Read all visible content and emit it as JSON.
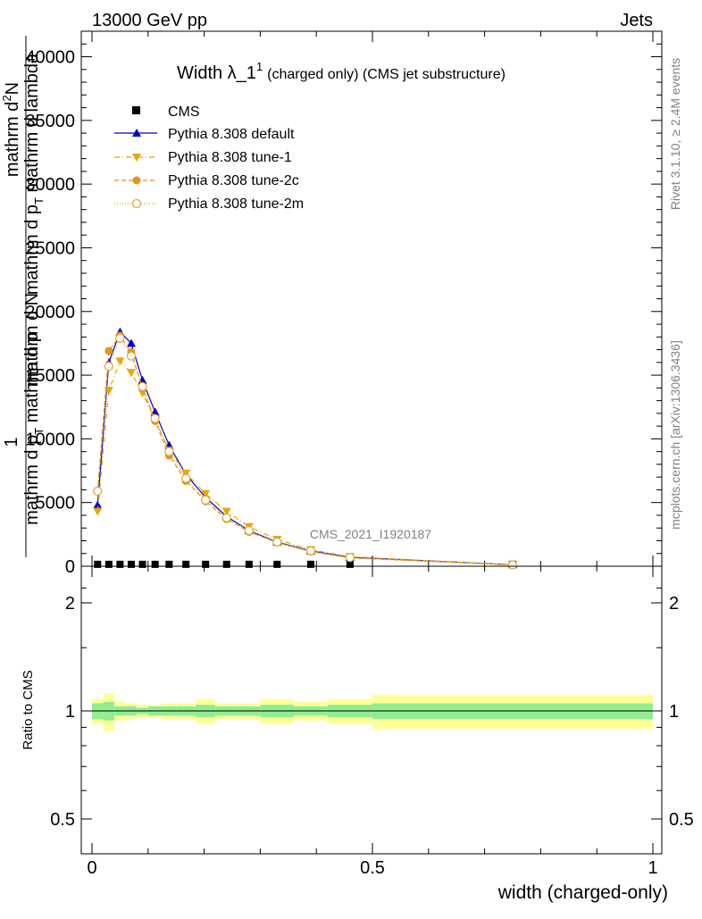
{
  "header": {
    "left": "13000 GeV pp",
    "right": "Jets"
  },
  "side_texts": {
    "rivet": "Rivet 3.1.10, ≥ 2.4M events",
    "mcplots": "mcplots.cern.ch [arXiv:1306.3436]"
  },
  "watermark": "CMS_2021_I1920187",
  "title": {
    "main": "Width λ_1",
    "sup": "1",
    "rest": "(charged only) (CMS jet substructure)"
  },
  "ylabel": {
    "one": "1",
    "num": "mathrm d N",
    "den": "mathrm d p",
    "den_sub": "T",
    "den_rest": " mathrm d p",
    "right_num": "mathrm d",
    "right_sup": "2",
    "right_num2": "N",
    "right_den": "mathrm d p",
    "right_den_sub": "T",
    "right_den_rest": " mathrm d lambda"
  },
  "xlabel": "width (charged-only)",
  "ratio_ylabel": "Ratio to CMS",
  "colors": {
    "default": "#0000cc",
    "tune1": "#e8a800",
    "tune2c": "#e39518",
    "tune2m": "#e3a330",
    "band_inner": "#90ee90",
    "band_outer": "#ffff99"
  },
  "chart_data": {
    "type": "line",
    "x_edges": [
      0,
      0.02,
      0.04,
      0.06,
      0.08,
      0.1,
      0.125,
      0.15,
      0.185,
      0.22,
      0.26,
      0.3,
      0.36,
      0.42,
      0.5,
      1.0
    ],
    "xlim": [
      -0.01,
      1.01
    ],
    "ylim": [
      0,
      42000
    ],
    "yticks": [
      0,
      5000,
      10000,
      15000,
      20000,
      25000,
      30000,
      35000,
      40000
    ],
    "ytick_labels": [
      "0",
      "5000",
      "10000",
      "15000",
      "20000",
      "25000",
      "30000",
      "35000",
      "40000"
    ],
    "xticks": [
      0,
      0.5,
      1
    ],
    "xtick_labels": [
      "0",
      "0.5",
      "1"
    ],
    "series": [
      {
        "name": "CMS",
        "key": "cms",
        "x": [
          0.01,
          0.03,
          0.05,
          0.07,
          0.09,
          0.1125,
          0.1375,
          0.1675,
          0.2025,
          0.24,
          0.28,
          0.33,
          0.39,
          0.46,
          0.75
        ],
        "values": [
          150,
          150,
          150,
          150,
          150,
          150,
          150,
          150,
          150,
          150,
          150,
          150,
          150,
          150,
          150
        ]
      },
      {
        "name": "Pythia 8.308 default",
        "key": "default",
        "x": [
          0.01,
          0.03,
          0.05,
          0.07,
          0.09,
          0.1125,
          0.1375,
          0.1675,
          0.2025,
          0.24,
          0.28,
          0.33,
          0.39,
          0.46,
          0.75
        ],
        "values": [
          4800,
          16000,
          18400,
          17500,
          14600,
          12100,
          9500,
          7200,
          5400,
          3900,
          2800,
          1900,
          1200,
          700,
          120
        ]
      },
      {
        "name": "Pythia 8.308 tune-1",
        "key": "tune1",
        "x": [
          0.01,
          0.03,
          0.05,
          0.07,
          0.09,
          0.1125,
          0.1375,
          0.1675,
          0.2025,
          0.24,
          0.28,
          0.33,
          0.39,
          0.46,
          0.75
        ],
        "values": [
          4300,
          13800,
          16100,
          15200,
          13600,
          11500,
          9100,
          7300,
          5700,
          4300,
          3100,
          2100,
          1300,
          750,
          110
        ]
      },
      {
        "name": "Pythia 8.308 tune-2c",
        "key": "tune2c",
        "x": [
          0.01,
          0.03,
          0.05,
          0.07,
          0.09,
          0.1125,
          0.1375,
          0.1675,
          0.2025,
          0.24,
          0.28,
          0.33,
          0.39,
          0.46,
          0.75
        ],
        "values": [
          5900,
          16900,
          18100,
          16800,
          14000,
          11400,
          8700,
          6700,
          5100,
          3700,
          2700,
          1850,
          1150,
          650,
          100
        ]
      },
      {
        "name": "Pythia 8.308 tune-2m",
        "key": "tune2m",
        "x": [
          0.01,
          0.03,
          0.05,
          0.07,
          0.09,
          0.1125,
          0.1375,
          0.1675,
          0.2025,
          0.24,
          0.28,
          0.33,
          0.39,
          0.46,
          0.75
        ],
        "values": [
          5900,
          15700,
          17900,
          16500,
          14100,
          11600,
          9000,
          6900,
          5200,
          3800,
          2800,
          1900,
          1200,
          680,
          105
        ]
      }
    ],
    "ratio": {
      "ylim": [
        0.4,
        2.4
      ],
      "yticks": [
        0.5,
        1,
        2
      ],
      "ytick_labels": [
        "0.5",
        "1",
        "2"
      ],
      "inner": [
        0.05,
        0.06,
        0.03,
        0.03,
        0.02,
        0.03,
        0.03,
        0.03,
        0.04,
        0.03,
        0.03,
        0.04,
        0.03,
        0.04,
        0.05
      ],
      "outer": [
        0.08,
        0.12,
        0.06,
        0.05,
        0.04,
        0.04,
        0.05,
        0.05,
        0.08,
        0.05,
        0.05,
        0.08,
        0.06,
        0.08,
        0.11
      ]
    }
  }
}
